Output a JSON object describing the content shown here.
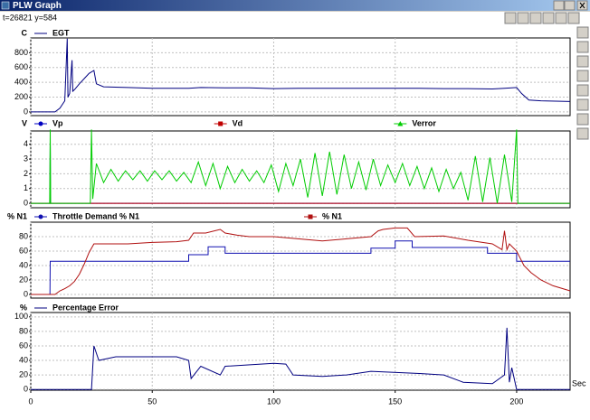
{
  "window": {
    "title": "PLW Graph",
    "status": "t=26821 y=584"
  },
  "chart_data": [
    {
      "type": "line",
      "y_label": "C",
      "xlim": [
        0,
        222
      ],
      "xticks": [
        0,
        50,
        100,
        150,
        200
      ],
      "ylim": [
        -50,
        1000
      ],
      "yticks": [
        0,
        200,
        400,
        600,
        800
      ],
      "grid": true,
      "series": [
        {
          "name": "EGT",
          "color": "#000080",
          "x": [
            0,
            10,
            12,
            14,
            15,
            15.3,
            16,
            17,
            17.3,
            18,
            20,
            22,
            24,
            26,
            27,
            30,
            40,
            50,
            60,
            65,
            70,
            80,
            90,
            100,
            110,
            120,
            130,
            140,
            150,
            160,
            170,
            180,
            190,
            195,
            200,
            202,
            205,
            210,
            222
          ],
          "values": [
            0,
            0,
            50,
            150,
            990,
            200,
            250,
            700,
            280,
            300,
            380,
            450,
            520,
            560,
            380,
            340,
            330,
            320,
            320,
            320,
            330,
            325,
            325,
            315,
            320,
            320,
            320,
            320,
            320,
            320,
            315,
            315,
            310,
            320,
            330,
            250,
            160,
            150,
            140
          ]
        }
      ]
    },
    {
      "type": "line",
      "y_label": "V",
      "xlim": [
        0,
        222
      ],
      "xticks": [
        0,
        50,
        100,
        150,
        200
      ],
      "ylim": [
        -0.3,
        4.9
      ],
      "yticks": [
        0,
        1,
        2,
        3,
        4
      ],
      "grid": true,
      "series": [
        {
          "name": "Vp",
          "color": "#0000c0",
          "marker": "circle",
          "x": [
            0,
            7.9,
            8,
            8.05,
            8.1,
            222
          ],
          "values": [
            0,
            0,
            4.2,
            3.1,
            0,
            0
          ]
        },
        {
          "name": "Vd",
          "color": "#c00000",
          "marker": "square",
          "x": [
            0,
            222
          ],
          "values": [
            0,
            0
          ]
        },
        {
          "name": "Verror",
          "color": "#00cc00",
          "marker": "triangle",
          "x": [
            0,
            7.8,
            8,
            8.2,
            24.5,
            25,
            25.5,
            27,
            30,
            33,
            36,
            39,
            42,
            45,
            48,
            51,
            54,
            57,
            60,
            63,
            66,
            69,
            72,
            75,
            78,
            81,
            84,
            87,
            90,
            93,
            96,
            99,
            102,
            105,
            108,
            111,
            114,
            117,
            120,
            123,
            126,
            129,
            132,
            135,
            138,
            141,
            144,
            147,
            150,
            153,
            156,
            159,
            162,
            165,
            168,
            171,
            174,
            177,
            180,
            183,
            186,
            189,
            192,
            195,
            198,
            200,
            200.5,
            201,
            222
          ],
          "values": [
            0,
            0,
            5,
            0,
            0,
            5,
            0.3,
            2.7,
            1.4,
            2.3,
            1.5,
            2.2,
            1.6,
            2.2,
            1.5,
            2.2,
            1.6,
            2.2,
            1.5,
            2.1,
            1.4,
            2.8,
            1.2,
            2.7,
            1.0,
            2.5,
            1.4,
            2.3,
            1.5,
            2.2,
            1.4,
            2.6,
            0.8,
            2.7,
            1.2,
            3.0,
            0.4,
            3.4,
            0.5,
            3.5,
            0.6,
            3.3,
            1.0,
            2.8,
            0.9,
            3.0,
            1.2,
            2.6,
            1.4,
            2.7,
            1.2,
            2.5,
            1.0,
            2.4,
            0.8,
            2.3,
            1.0,
            2.1,
            0.2,
            3.2,
            0.1,
            3.1,
            0.0,
            3.3,
            0.1,
            5,
            0,
            0,
            0
          ]
        }
      ]
    },
    {
      "type": "line",
      "y_label": "% N1",
      "xlim": [
        0,
        222
      ],
      "xticks": [
        0,
        50,
        100,
        150,
        200
      ],
      "ylim": [
        -5,
        100
      ],
      "yticks": [
        0,
        20,
        40,
        60,
        80
      ],
      "grid": true,
      "series": [
        {
          "name": "Throttle Demand % N1",
          "color": "#1010b0",
          "marker": "circle",
          "x": [
            0,
            7.9,
            8,
            65,
            65,
            73,
            73,
            80,
            80,
            140,
            140,
            150,
            150,
            157,
            157,
            188,
            188,
            200,
            200,
            222
          ],
          "values": [
            0,
            0,
            46,
            46,
            55,
            55,
            66,
            66,
            57,
            57,
            64,
            64,
            74,
            74,
            65,
            65,
            57,
            57,
            46,
            46
          ]
        },
        {
          "name": "% N1",
          "color": "#b01010",
          "marker": "square",
          "x": [
            0,
            10,
            12,
            14,
            16,
            18,
            20,
            22,
            24,
            26,
            30,
            40,
            50,
            60,
            65,
            67,
            72,
            78,
            80,
            85,
            90,
            100,
            110,
            120,
            130,
            140,
            143,
            145,
            150,
            155,
            158,
            170,
            180,
            190,
            194,
            195,
            196,
            197,
            200,
            203,
            206,
            210,
            215,
            222
          ],
          "values": [
            0,
            0,
            5,
            8,
            12,
            18,
            28,
            42,
            58,
            70,
            70,
            70,
            72,
            73,
            75,
            85,
            85,
            90,
            85,
            82,
            80,
            80,
            77,
            74,
            77,
            80,
            88,
            90,
            92,
            92,
            80,
            81,
            75,
            70,
            62,
            88,
            62,
            70,
            60,
            40,
            30,
            20,
            12,
            5
          ]
        }
      ]
    },
    {
      "type": "line",
      "y_label": "%",
      "x_label": "Sec",
      "xlim": [
        0,
        222
      ],
      "xticks": [
        0,
        50,
        100,
        150,
        200
      ],
      "ylim": [
        -1,
        106
      ],
      "yticks": [
        0,
        20,
        40,
        60,
        80,
        100
      ],
      "grid": true,
      "series": [
        {
          "name": "Percentage Error",
          "color": "#000080",
          "x": [
            0,
            25,
            26,
            28,
            35,
            60,
            65,
            66,
            70,
            78,
            80,
            100,
            105,
            108,
            120,
            130,
            140,
            160,
            170,
            178,
            190,
            195,
            196,
            197,
            198,
            200,
            222
          ],
          "values": [
            0,
            0,
            60,
            40,
            45,
            45,
            40,
            15,
            32,
            20,
            32,
            36,
            35,
            20,
            18,
            20,
            25,
            22,
            20,
            10,
            8,
            20,
            85,
            10,
            30,
            0,
            0
          ]
        }
      ]
    }
  ]
}
